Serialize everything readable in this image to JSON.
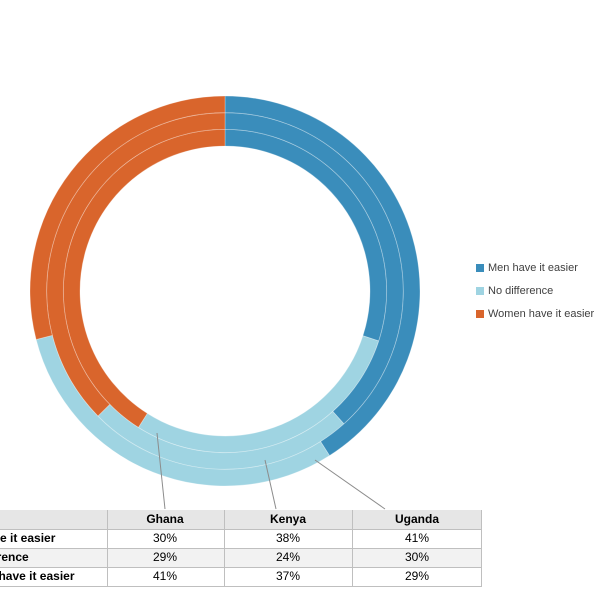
{
  "chart_data": {
    "type": "multi-donut",
    "categories": [
      "Ghana",
      "Kenya",
      "Uganda"
    ],
    "series": [
      {
        "name": "Men have it easier",
        "color": "#3a8dbb",
        "values": [
          30,
          38,
          41
        ],
        "value_labels": [
          "30%",
          "38%",
          "41%"
        ]
      },
      {
        "name": "No difference",
        "color": "#9fd4e2",
        "values": [
          29,
          24,
          30
        ],
        "value_labels": [
          "29%",
          "24%",
          "30%"
        ]
      },
      {
        "name": "Women have it easier",
        "color": "#d9652c",
        "values": [
          41,
          37,
          29
        ],
        "value_labels": [
          "41%",
          "37%",
          "29%"
        ]
      }
    ]
  }
}
